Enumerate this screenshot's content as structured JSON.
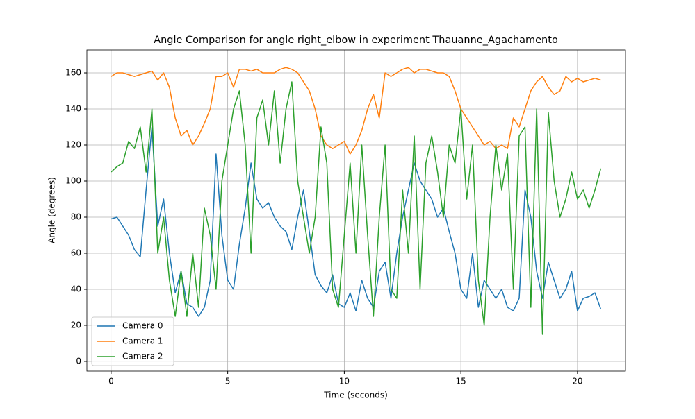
{
  "chart_data": {
    "type": "line",
    "title": "Angle Comparison for angle right_elbow in experiment Thauanne_Agachamento",
    "x_label": "Time (seconds)",
    "y_label": "Angle (degrees)",
    "x": [
      0,
      0.25,
      0.5,
      0.75,
      1,
      1.25,
      1.5,
      1.75,
      2,
      2.25,
      2.5,
      2.75,
      3,
      3.25,
      3.5,
      3.75,
      4,
      4.25,
      4.5,
      4.75,
      5,
      5.25,
      5.5,
      5.75,
      6,
      6.25,
      6.5,
      6.75,
      7,
      7.25,
      7.5,
      7.75,
      8,
      8.25,
      8.5,
      8.75,
      9,
      9.25,
      9.5,
      9.75,
      10,
      10.25,
      10.5,
      10.75,
      11,
      11.25,
      11.5,
      11.75,
      12,
      12.25,
      12.5,
      12.75,
      13,
      13.25,
      13.5,
      13.75,
      14,
      14.25,
      14.5,
      14.75,
      15,
      15.25,
      15.5,
      15.75,
      16,
      16.25,
      16.5,
      16.75,
      17,
      17.25,
      17.5,
      17.75,
      18,
      18.25,
      18.5,
      18.75,
      19,
      19.25,
      19.5,
      19.75,
      20,
      20.25,
      20.5,
      20.75,
      21
    ],
    "series": [
      {
        "name": "Camera 0",
        "color": "#1f77b4",
        "values": [
          79,
          80,
          75,
          70,
          62,
          58,
          95,
          130,
          75,
          90,
          60,
          38,
          50,
          32,
          30,
          25,
          30,
          45,
          115,
          70,
          45,
          40,
          65,
          85,
          110,
          90,
          85,
          88,
          80,
          75,
          72,
          62,
          80,
          95,
          72,
          48,
          42,
          38,
          48,
          32,
          30,
          38,
          28,
          45,
          35,
          30,
          50,
          55,
          35,
          60,
          80,
          95,
          110,
          100,
          95,
          90,
          80,
          85,
          72,
          60,
          40,
          35,
          60,
          30,
          45,
          40,
          35,
          40,
          30,
          28,
          35,
          95,
          80,
          50,
          35,
          55,
          45,
          35,
          40,
          50,
          28,
          35,
          36,
          38,
          29
        ]
      },
      {
        "name": "Camera 1",
        "color": "#ff7f0e",
        "values": [
          158,
          160,
          160,
          159,
          158,
          159,
          160,
          161,
          156,
          160,
          152,
          135,
          125,
          128,
          120,
          125,
          132,
          140,
          158,
          158,
          160,
          152,
          162,
          162,
          161,
          162,
          160,
          160,
          160,
          162,
          163,
          162,
          160,
          155,
          150,
          140,
          125,
          120,
          118,
          120,
          122,
          115,
          120,
          128,
          140,
          148,
          135,
          160,
          158,
          160,
          162,
          163,
          160,
          162,
          162,
          161,
          160,
          160,
          158,
          150,
          140,
          135,
          130,
          125,
          120,
          122,
          118,
          120,
          118,
          135,
          130,
          140,
          150,
          155,
          158,
          152,
          148,
          150,
          158,
          155,
          157,
          155,
          156,
          157,
          156
        ]
      },
      {
        "name": "Camera 2",
        "color": "#2ca02c",
        "values": [
          105,
          108,
          110,
          122,
          118,
          130,
          105,
          140,
          60,
          80,
          45,
          25,
          50,
          25,
          60,
          30,
          85,
          70,
          40,
          100,
          120,
          140,
          150,
          120,
          60,
          135,
          145,
          120,
          150,
          110,
          140,
          155,
          100,
          80,
          60,
          80,
          130,
          110,
          40,
          30,
          70,
          110,
          60,
          120,
          70,
          25,
          80,
          120,
          40,
          35,
          95,
          60,
          125,
          40,
          110,
          125,
          105,
          80,
          120,
          110,
          140,
          90,
          120,
          45,
          20,
          80,
          120,
          95,
          115,
          40,
          125,
          130,
          30,
          140,
          15,
          138,
          100,
          80,
          90,
          105,
          90,
          95,
          85,
          95,
          107
        ]
      }
    ],
    "xlim": [
      -1.04,
      22.06
    ],
    "ylim": [
      -5.4,
      172.7
    ],
    "xticks": [
      0,
      5,
      10,
      15,
      20
    ],
    "yticks": [
      0,
      20,
      40,
      60,
      80,
      100,
      120,
      140,
      160
    ],
    "grid": true,
    "legend": "lower left"
  }
}
